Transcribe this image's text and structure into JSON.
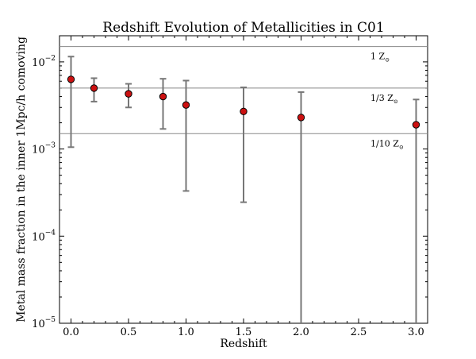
{
  "chart_data": {
    "type": "scatter",
    "title": "Redshift Evolution of Metallicities in C01",
    "xlabel": "Redshift",
    "ylabel": "Metal mass fraction in the inner 1Mpc/h comoving",
    "xlim": [
      -0.1,
      3.1
    ],
    "ylim_log10": [
      -5,
      -1.7
    ],
    "x_ticks": [
      {
        "v": 0.0,
        "label": "0.0"
      },
      {
        "v": 0.5,
        "label": "0.5"
      },
      {
        "v": 1.0,
        "label": "1.0"
      },
      {
        "v": 1.5,
        "label": "1.5"
      },
      {
        "v": 2.0,
        "label": "2.0"
      },
      {
        "v": 2.5,
        "label": "2.5"
      },
      {
        "v": 3.0,
        "label": "3.0"
      }
    ],
    "y_ticks": [
      {
        "exp": -5,
        "base": "10",
        "sup": "−5"
      },
      {
        "exp": -4,
        "base": "10",
        "sup": "−4"
      },
      {
        "exp": -3,
        "base": "10",
        "sup": "−3"
      },
      {
        "exp": -2,
        "base": "10",
        "sup": "−2"
      }
    ],
    "reference_lines": [
      {
        "value": 0.015,
        "label_main": "1 Z",
        "label_sub": "⊙"
      },
      {
        "value": 0.005,
        "label_main": "1/3 Z",
        "label_sub": "⊙"
      },
      {
        "value": 0.0015,
        "label_main": "1/10 Z",
        "label_sub": "⊙"
      }
    ],
    "points": [
      {
        "x": 0.0,
        "y": 0.0063,
        "lo": 0.00105,
        "hi": 0.0115
      },
      {
        "x": 0.2,
        "y": 0.005,
        "lo": 0.0035,
        "hi": 0.0065
      },
      {
        "x": 0.5,
        "y": 0.0043,
        "lo": 0.003,
        "hi": 0.0056
      },
      {
        "x": 0.8,
        "y": 0.004,
        "lo": 0.0017,
        "hi": 0.0064
      },
      {
        "x": 1.0,
        "y": 0.0032,
        "lo": 0.00033,
        "hi": 0.0061
      },
      {
        "x": 1.5,
        "y": 0.0027,
        "lo": 0.000245,
        "hi": 0.0051
      },
      {
        "x": 2.0,
        "y": 0.0023,
        "lo": 1e-05,
        "hi": 0.0045
      },
      {
        "x": 3.0,
        "y": 0.0019,
        "lo": 1e-05,
        "hi": 0.0037
      }
    ],
    "marker_color": "#cc1111",
    "errorbar_color": "#777777",
    "refline_color": "#888888"
  }
}
